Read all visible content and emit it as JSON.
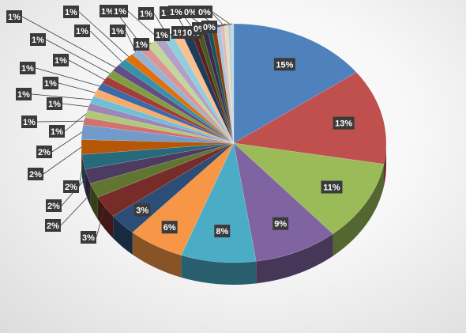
{
  "chart_data": {
    "type": "pie",
    "style": "3d-pie",
    "title": "",
    "show_legend": false,
    "values": [
      15,
      13,
      11,
      9,
      8,
      6,
      3,
      3,
      2,
      2,
      2,
      2,
      2,
      1,
      1,
      1,
      1,
      1,
      1,
      1,
      1,
      1,
      1,
      1,
      1,
      1,
      1,
      1,
      1,
      1,
      1,
      0.6,
      0.6,
      0.6,
      0.5,
      0.5,
      0.5,
      0.4,
      0.4,
      0.3,
      0.3
    ],
    "data_labels": [
      "15%",
      "13%",
      "11%",
      "9%",
      "8%",
      "6%",
      "3%",
      "3%",
      "2%",
      "2%",
      "2%",
      "2%",
      "2%",
      "1%",
      "1%",
      "1%",
      "1%",
      "1%",
      "1%",
      "1%",
      "1%",
      "1%",
      "1%",
      "1%",
      "1%",
      "1%",
      "1%",
      "1%",
      "1%",
      "1%",
      "1%",
      "1%",
      "1%",
      "1%",
      "1%",
      "0%",
      "0%",
      "0%",
      "0%",
      "0%",
      "0%"
    ],
    "colors": [
      "#4f81bd",
      "#c0504d",
      "#9bbb59",
      "#8064a2",
      "#4bacc6",
      "#f79646",
      "#2c4d75",
      "#772c2a",
      "#5f7530",
      "#4d3b62",
      "#276a7c",
      "#b65708",
      "#729aca",
      "#d0726f",
      "#afc97a",
      "#9f86b8",
      "#6ec0d6",
      "#f9ab6b",
      "#3a6aa8",
      "#a33d3a",
      "#7e9e3f",
      "#644d85",
      "#3692a8",
      "#e0700c",
      "#95b3d7",
      "#d99694",
      "#c3d69b",
      "#b2a1c7",
      "#92cddc",
      "#fac090",
      "#1f3b5a",
      "#5b1f1e",
      "#475a24",
      "#3a2b4b",
      "#1d4f5c",
      "#8a4205",
      "#a9c4e4",
      "#e6b8b7",
      "#d7e4bd",
      "#ccc0da",
      "#b7dee8"
    ]
  }
}
